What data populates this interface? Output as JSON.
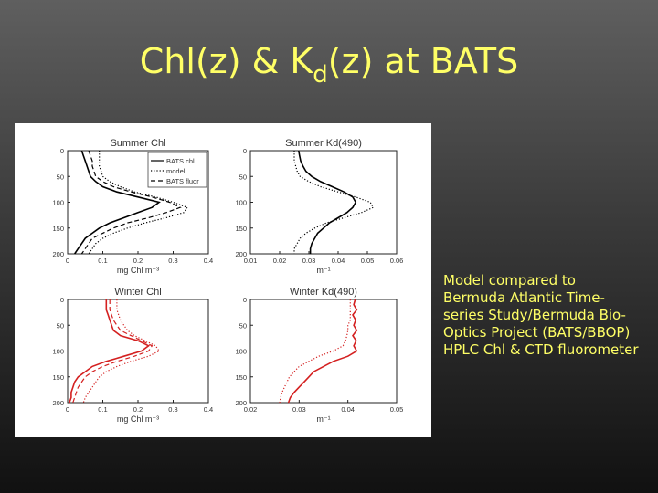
{
  "slide": {
    "title_main": "Chl(z) & K",
    "title_sub": "d",
    "title_end": "(z) at BATS",
    "caption_lines": [
      "Model compared to",
      "Bermuda Atlantic Time-",
      "series Study/Bermuda Bio-",
      "Optics Project (BATS/BBOP)",
      "HPLC Chl & CTD fluorometer"
    ],
    "colors": {
      "title": "#ffff66",
      "caption": "#ffff66",
      "winter_series": "#d42020",
      "summer_series": "#000000"
    }
  },
  "chart_data": [
    {
      "type": "line",
      "title": "Summer Chl",
      "xlabel": "mg Chl m⁻³",
      "xlim": [
        0,
        0.4
      ],
      "ylim": [
        200,
        0
      ],
      "xticks": [
        "0",
        "0.1",
        "0.2",
        "0.3",
        "0.4"
      ],
      "yticks": [
        "0",
        "50",
        "100",
        "150",
        "200"
      ],
      "legend": {
        "placement": "top-right",
        "entries": [
          "BATS chl",
          "model",
          "BATS fluor"
        ]
      },
      "color": "#000000",
      "series": [
        {
          "name": "BATS chl",
          "style": "solid",
          "y": [
            0,
            10,
            20,
            30,
            40,
            50,
            60,
            70,
            80,
            90,
            100,
            110,
            120,
            130,
            140,
            150,
            160,
            170,
            180,
            190,
            200
          ],
          "x": [
            0.04,
            0.045,
            0.05,
            0.055,
            0.06,
            0.065,
            0.08,
            0.1,
            0.14,
            0.2,
            0.26,
            0.24,
            0.2,
            0.16,
            0.12,
            0.09,
            0.07,
            0.05,
            0.04,
            0.03,
            0.02
          ]
        },
        {
          "name": "model",
          "style": "dotted",
          "y": [
            0,
            10,
            20,
            30,
            40,
            50,
            60,
            70,
            80,
            90,
            100,
            110,
            120,
            130,
            140,
            150,
            160,
            170,
            180,
            190,
            200
          ],
          "x": [
            0.09,
            0.09,
            0.09,
            0.09,
            0.095,
            0.1,
            0.12,
            0.15,
            0.19,
            0.25,
            0.3,
            0.34,
            0.33,
            0.28,
            0.22,
            0.17,
            0.13,
            0.1,
            0.08,
            0.07,
            0.06
          ]
        },
        {
          "name": "BATS fluor",
          "style": "dashed",
          "y": [
            0,
            10,
            20,
            30,
            40,
            50,
            60,
            70,
            80,
            90,
            100,
            110,
            120,
            130,
            140,
            150,
            160,
            170,
            180,
            190,
            200
          ],
          "x": [
            0.06,
            0.065,
            0.07,
            0.07,
            0.075,
            0.08,
            0.1,
            0.13,
            0.18,
            0.24,
            0.29,
            0.32,
            0.28,
            0.23,
            0.17,
            0.13,
            0.1,
            0.07,
            0.06,
            0.05,
            0.04
          ]
        }
      ]
    },
    {
      "type": "line",
      "title": "Summer Kd(490)",
      "xlabel": "m⁻¹",
      "xlim": [
        0.01,
        0.06
      ],
      "ylim": [
        200,
        0
      ],
      "xticks": [
        "0.01",
        "0.02",
        "0.03",
        "0.04",
        "0.05",
        "0.06"
      ],
      "yticks": [
        "0",
        "50",
        "100",
        "150",
        "200"
      ],
      "color": "#000000",
      "series": [
        {
          "name": "BATS",
          "style": "solid",
          "y": [
            0,
            10,
            20,
            30,
            40,
            50,
            60,
            70,
            80,
            90,
            100,
            110,
            120,
            130,
            140,
            150,
            160,
            170,
            180,
            190,
            200
          ],
          "x": [
            0.0265,
            0.0268,
            0.0272,
            0.028,
            0.029,
            0.031,
            0.034,
            0.038,
            0.042,
            0.045,
            0.046,
            0.045,
            0.043,
            0.04,
            0.037,
            0.035,
            0.033,
            0.032,
            0.031,
            0.0305,
            0.0305
          ]
        },
        {
          "name": "model",
          "style": "dotted",
          "y": [
            0,
            10,
            20,
            30,
            40,
            50,
            60,
            70,
            80,
            90,
            100,
            110,
            120,
            130,
            140,
            150,
            160,
            170,
            180,
            190,
            200
          ],
          "x": [
            0.025,
            0.025,
            0.025,
            0.0255,
            0.026,
            0.027,
            0.03,
            0.034,
            0.04,
            0.046,
            0.051,
            0.052,
            0.048,
            0.042,
            0.036,
            0.032,
            0.029,
            0.027,
            0.026,
            0.025,
            0.025
          ]
        }
      ]
    },
    {
      "type": "line",
      "title": "Winter Chl",
      "xlabel": "mg Chl m⁻³",
      "xlim": [
        0,
        0.4
      ],
      "ylim": [
        200,
        0
      ],
      "xticks": [
        "0",
        "0.1",
        "0.2",
        "0.3",
        "0.4"
      ],
      "yticks": [
        "0",
        "50",
        "100",
        "150",
        "200"
      ],
      "color": "#d42020",
      "series": [
        {
          "name": "BATS chl",
          "style": "solid",
          "y": [
            0,
            10,
            20,
            30,
            40,
            50,
            60,
            70,
            80,
            90,
            100,
            110,
            120,
            130,
            140,
            150,
            160,
            170,
            180,
            190,
            200
          ],
          "x": [
            0.11,
            0.11,
            0.11,
            0.115,
            0.12,
            0.125,
            0.13,
            0.15,
            0.2,
            0.23,
            0.21,
            0.16,
            0.11,
            0.07,
            0.05,
            0.03,
            0.02,
            0.015,
            0.01,
            0.01,
            0.005
          ]
        },
        {
          "name": "model",
          "style": "dotted",
          "y": [
            0,
            10,
            20,
            30,
            40,
            50,
            60,
            70,
            80,
            90,
            100,
            110,
            120,
            130,
            140,
            150,
            160,
            170,
            180,
            190,
            200
          ],
          "x": [
            0.14,
            0.14,
            0.14,
            0.145,
            0.15,
            0.16,
            0.17,
            0.19,
            0.22,
            0.25,
            0.26,
            0.23,
            0.18,
            0.14,
            0.11,
            0.09,
            0.08,
            0.07,
            0.06,
            0.05,
            0.045
          ]
        },
        {
          "name": "BATS fluor",
          "style": "dashed",
          "y": [
            0,
            10,
            20,
            30,
            40,
            50,
            60,
            70,
            80,
            90,
            100,
            110,
            120,
            130,
            140,
            150,
            160,
            170,
            180,
            190,
            200
          ],
          "x": [
            0.12,
            0.12,
            0.12,
            0.125,
            0.13,
            0.14,
            0.15,
            0.18,
            0.21,
            0.24,
            0.23,
            0.19,
            0.14,
            0.1,
            0.07,
            0.05,
            0.04,
            0.03,
            0.025,
            0.02,
            0.015
          ]
        }
      ]
    },
    {
      "type": "line",
      "title": "Winter Kd(490)",
      "xlabel": "m⁻¹",
      "xlim": [
        0.02,
        0.05
      ],
      "ylim": [
        200,
        0
      ],
      "xticks": [
        "0.02",
        "0.03",
        "0.04",
        "0.05"
      ],
      "yticks": [
        "0",
        "50",
        "100",
        "150",
        "200"
      ],
      "color": "#d42020",
      "series": [
        {
          "name": "BATS",
          "style": "solid",
          "y": [
            0,
            10,
            20,
            30,
            40,
            50,
            60,
            70,
            80,
            90,
            100,
            110,
            120,
            130,
            140,
            150,
            160,
            170,
            180,
            190,
            200
          ],
          "x": [
            0.0415,
            0.0412,
            0.0418,
            0.041,
            0.0416,
            0.0412,
            0.0418,
            0.041,
            0.0417,
            0.0412,
            0.0418,
            0.04,
            0.037,
            0.035,
            0.033,
            0.032,
            0.031,
            0.03,
            0.029,
            0.0282,
            0.0278
          ]
        },
        {
          "name": "model",
          "style": "dotted",
          "y": [
            0,
            10,
            20,
            30,
            40,
            50,
            60,
            70,
            80,
            90,
            100,
            110,
            120,
            130,
            140,
            150,
            160,
            170,
            180,
            190,
            200
          ],
          "x": [
            0.0405,
            0.0405,
            0.0405,
            0.0405,
            0.0405,
            0.04,
            0.04,
            0.0398,
            0.0395,
            0.039,
            0.037,
            0.034,
            0.032,
            0.03,
            0.029,
            0.028,
            0.0275,
            0.027,
            0.0265,
            0.0262,
            0.026
          ]
        }
      ]
    }
  ]
}
